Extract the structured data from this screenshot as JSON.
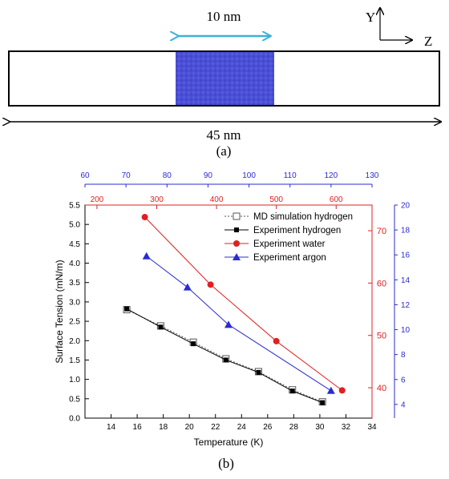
{
  "panel_a": {
    "width_label": "10 nm",
    "box_label": "45 nm",
    "caption": "(a)",
    "axis_y": "Y",
    "axis_z": "Z",
    "colors": {
      "box_fill": "#4b4fd6",
      "arrow": "#3fb0d8"
    }
  },
  "panel_b": {
    "caption": "(b)"
  },
  "chart_data": {
    "type": "line",
    "xlabel": "Temperature (K)",
    "ylabel": "Surface Tension (mN/m)",
    "xlim": [
      12,
      34
    ],
    "ylim": [
      0,
      5.5
    ],
    "x_ticks": [
      14,
      16,
      18,
      20,
      22,
      24,
      26,
      28,
      30,
      32,
      34
    ],
    "y_ticks": [
      0.0,
      0.5,
      1.0,
      1.5,
      2.0,
      2.5,
      3.0,
      3.5,
      4.0,
      4.5,
      5.0,
      5.5
    ],
    "top_axis_blue": {
      "range": [
        60,
        130
      ],
      "ticks": [
        60,
        70,
        80,
        90,
        100,
        110,
        120,
        130
      ],
      "color": "#2b2bd0"
    },
    "top_axis_red": {
      "range": [
        180,
        660
      ],
      "ticks": [
        200,
        300,
        400,
        500,
        600
      ],
      "color": "#e02020"
    },
    "right_axis_red": {
      "range": [
        34.2,
        74.9
      ],
      "ticks": [
        40,
        50,
        60,
        70
      ],
      "color": "#e02020"
    },
    "right_axis_blue": {
      "range": [
        2.9,
        20
      ],
      "ticks": [
        4,
        6,
        8,
        10,
        12,
        14,
        16,
        18,
        20
      ],
      "color": "#2b2bd0"
    },
    "legend_position": "top-right",
    "series": [
      {
        "name": "MD simulation hydrogen",
        "color": "#555555",
        "marker": "open-square",
        "dashed": true,
        "x": [
          15.2,
          17.8,
          20.3,
          22.8,
          25.3,
          27.9,
          30.2
        ],
        "y": [
          2.8,
          2.38,
          1.96,
          1.53,
          1.2,
          0.73,
          0.42
        ]
      },
      {
        "name": "Experiment hydrogen",
        "color": "#000000",
        "marker": "filled-square",
        "dashed": false,
        "x": [
          15.2,
          17.8,
          20.3,
          22.8,
          25.3,
          27.9,
          30.2
        ],
        "y": [
          2.82,
          2.35,
          1.92,
          1.5,
          1.18,
          0.7,
          0.4
        ]
      },
      {
        "name": "Experiment water",
        "color": "#e02020",
        "marker": "filled-circle",
        "dashed": false,
        "x_top": [
          280,
          390,
          500,
          610
        ],
        "y_right": [
          72.6,
          59.7,
          48.9,
          39.5
        ]
      },
      {
        "name": "Experiment argon",
        "color": "#2b2bd0",
        "marker": "filled-triangle",
        "dashed": false,
        "x_top": [
          75,
          85,
          95,
          120
        ],
        "y_right": [
          15.9,
          13.4,
          10.4,
          5.1
        ]
      }
    ]
  }
}
